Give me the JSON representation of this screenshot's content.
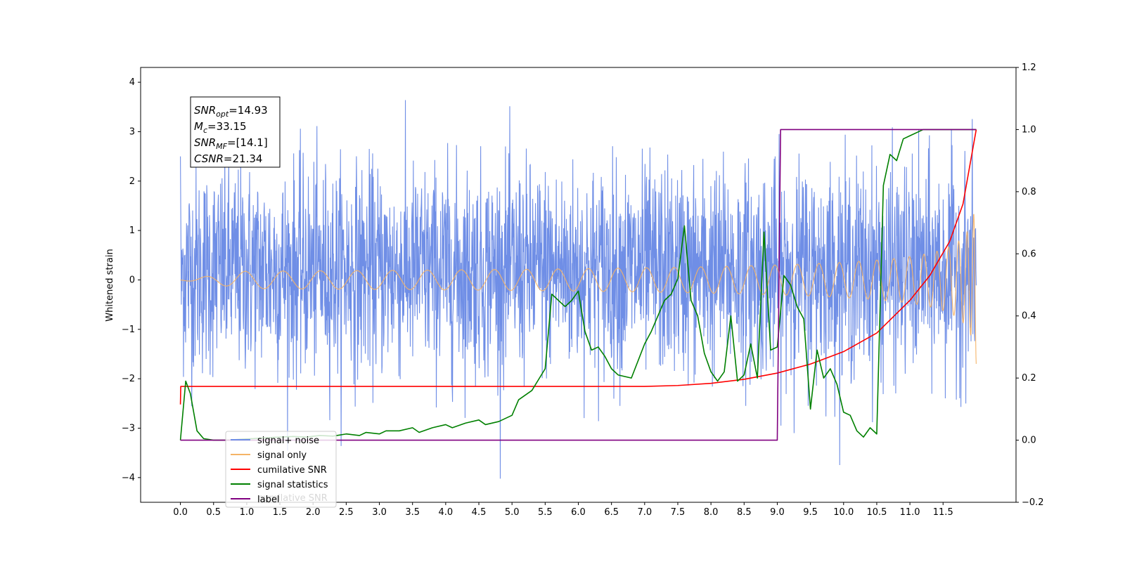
{
  "chart_data": {
    "type": "line",
    "title": "",
    "xlabel": "",
    "ylabel": "Whitened strain",
    "xlim": [
      -0.6,
      12.6
    ],
    "ylim": [
      -4.5,
      4.3
    ],
    "y2lim": [
      -0.2,
      1.2
    ],
    "x_ticks": [
      0.0,
      0.5,
      1.0,
      1.5,
      2.0,
      2.5,
      3.0,
      3.5,
      4.0,
      4.5,
      5.0,
      5.5,
      6.0,
      6.5,
      7.0,
      7.5,
      8.0,
      8.5,
      9.0,
      9.5,
      10.0,
      10.5,
      11.0,
      11.5
    ],
    "x_tick_labels": [
      "0.0",
      "0.5",
      "1.0",
      "1.5",
      "2.0",
      "2.5",
      "3.0",
      "3.5",
      "4.0",
      "4.5",
      "5.0",
      "5.5",
      "6.0",
      "6.5",
      "7.0",
      "7.5",
      "8.0",
      "8.5",
      "9.0",
      "9.5",
      "10.0",
      "10.5",
      "11.0",
      "11.5"
    ],
    "y_ticks": [
      -4,
      -3,
      -2,
      -1,
      0,
      1,
      2,
      3,
      4
    ],
    "y_tick_labels": [
      "−4",
      "−3",
      "−2",
      "−1",
      "0",
      "1",
      "2",
      "3",
      "4"
    ],
    "y2_ticks": [
      -0.2,
      0.0,
      0.2,
      0.4,
      0.6,
      0.8,
      1.0,
      1.2
    ],
    "y2_tick_labels": [
      "−0.2",
      "0.0",
      "0.2",
      "0.4",
      "0.6",
      "0.8",
      "1.0",
      "1.2"
    ],
    "grid": false,
    "legend_position": "lower-left",
    "annotation": {
      "lines": [
        {
          "name": "SNR",
          "sub": "opt",
          "value": "=14.93"
        },
        {
          "name": "M",
          "sub": "c",
          "value": "=33.15"
        },
        {
          "name": "SNR",
          "sub": "MF",
          "value": "=[14.1]"
        },
        {
          "name": "CSNR",
          "sub": "",
          "value": "=21.34"
        }
      ]
    },
    "legend_ghost_text": "cumilative SNR",
    "series": [
      {
        "name": "signal+ noise",
        "color": "#6f8ee6",
        "axis": "left",
        "description_values": {
          "x_start": 0.0,
          "x_end": 12.0,
          "typical_range": [
            -2.3,
            2.7
          ],
          "max": 3.9,
          "min": -4.1
        }
      },
      {
        "name": "signal only",
        "color": "#f5b467",
        "axis": "left",
        "chirp": {
          "x_start": 0.0,
          "x_end": 12.0,
          "amplitude_end": 1.7,
          "freq_start": 0.9,
          "freq_end": 12.0
        }
      },
      {
        "name": "cumilative SNR",
        "color": "#ff0000",
        "axis": "right",
        "x": [
          0.0,
          0.005,
          7.0,
          7.5,
          8.0,
          8.5,
          9.0,
          9.5,
          10.0,
          10.5,
          11.0,
          11.3,
          11.6,
          11.8,
          12.0
        ],
        "y": [
          0.115,
          0.173,
          0.173,
          0.176,
          0.183,
          0.196,
          0.216,
          0.245,
          0.285,
          0.345,
          0.45,
          0.53,
          0.64,
          0.76,
          1.0
        ]
      },
      {
        "name": "signal statistics",
        "color": "#008000",
        "axis": "right",
        "x": [
          0.0,
          0.08,
          0.15,
          0.25,
          0.35,
          0.5,
          0.7,
          0.9,
          1.1,
          1.3,
          1.5,
          1.7,
          1.9,
          2.1,
          2.3,
          2.5,
          2.7,
          2.8,
          3.0,
          3.1,
          3.3,
          3.5,
          3.6,
          3.8,
          4.0,
          4.1,
          4.3,
          4.5,
          4.6,
          4.8,
          5.0,
          5.1,
          5.3,
          5.5,
          5.6,
          5.8,
          5.9,
          6.0,
          6.1,
          6.2,
          6.3,
          6.4,
          6.5,
          6.6,
          6.8,
          7.0,
          7.1,
          7.3,
          7.4,
          7.5,
          7.6,
          7.7,
          7.8,
          7.9,
          8.0,
          8.1,
          8.2,
          8.3,
          8.4,
          8.5,
          8.6,
          8.7,
          8.8,
          8.9,
          9.0,
          9.1,
          9.2,
          9.3,
          9.4,
          9.5,
          9.6,
          9.7,
          9.8,
          9.9,
          10.0,
          10.1,
          10.2,
          10.3,
          10.4,
          10.5,
          10.6,
          10.7,
          10.8,
          10.9,
          11.0,
          11.2,
          11.5,
          12.0
        ],
        "y": [
          0.0,
          0.19,
          0.15,
          0.03,
          0.005,
          0.0,
          0.0,
          0.003,
          0.005,
          0.008,
          0.01,
          0.012,
          0.01,
          0.015,
          0.013,
          0.02,
          0.015,
          0.025,
          0.02,
          0.03,
          0.03,
          0.04,
          0.025,
          0.04,
          0.05,
          0.04,
          0.055,
          0.065,
          0.05,
          0.06,
          0.08,
          0.13,
          0.16,
          0.23,
          0.47,
          0.43,
          0.45,
          0.48,
          0.35,
          0.29,
          0.3,
          0.27,
          0.23,
          0.21,
          0.2,
          0.31,
          0.35,
          0.45,
          0.47,
          0.52,
          0.69,
          0.45,
          0.4,
          0.28,
          0.22,
          0.19,
          0.22,
          0.4,
          0.19,
          0.21,
          0.31,
          0.2,
          0.67,
          0.29,
          0.3,
          0.53,
          0.5,
          0.43,
          0.39,
          0.1,
          0.29,
          0.2,
          0.23,
          0.18,
          0.09,
          0.08,
          0.03,
          0.01,
          0.04,
          0.02,
          0.82,
          0.92,
          0.9,
          0.97,
          0.98,
          1.0,
          1.0,
          1.0
        ]
      },
      {
        "name": "label",
        "color": "#800080",
        "axis": "right",
        "x": [
          0.0,
          9.0,
          9.05,
          12.0
        ],
        "y": [
          0.0,
          0.0,
          1.0,
          1.0
        ]
      }
    ]
  }
}
